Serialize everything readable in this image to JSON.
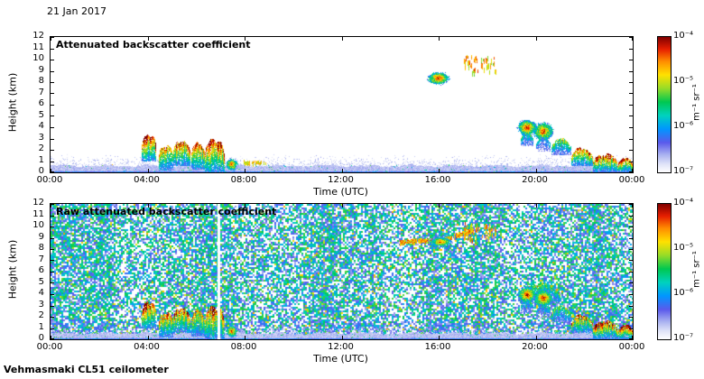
{
  "header": {
    "date": "21 Jan 2017"
  },
  "footer": {
    "instrument": "Vehmasmaki CL51 ceilometer"
  },
  "colormap_stops": [
    [
      0.0,
      255,
      255,
      255
    ],
    [
      0.06,
      224,
      228,
      248
    ],
    [
      0.13,
      170,
      178,
      240
    ],
    [
      0.22,
      90,
      90,
      235
    ],
    [
      0.32,
      0,
      150,
      255
    ],
    [
      0.42,
      0,
      210,
      190
    ],
    [
      0.52,
      0,
      200,
      80
    ],
    [
      0.62,
      150,
      220,
      40
    ],
    [
      0.72,
      255,
      225,
      0
    ],
    [
      0.82,
      255,
      140,
      0
    ],
    [
      0.91,
      230,
      30,
      0
    ],
    [
      1.0,
      128,
      0,
      0
    ]
  ],
  "chart_data": [
    {
      "type": "heatmap",
      "title": "Attenuated backscatter coefficient",
      "xlabel": "Time (UTC)",
      "ylabel": "Height (km)",
      "x_ticks": [
        "00:00",
        "04:00",
        "08:00",
        "12:00",
        "16:00",
        "20:00",
        "00:00"
      ],
      "x_tick_hours": [
        0,
        4,
        8,
        12,
        16,
        20,
        24
      ],
      "xlim_hours": [
        0,
        24
      ],
      "y_ticks": [
        0,
        1,
        2,
        3,
        4,
        5,
        6,
        7,
        8,
        9,
        10,
        11,
        12
      ],
      "ylim_km": [
        0,
        12
      ],
      "colorbar": {
        "ticks": [
          "10⁻⁴",
          "10⁻⁵",
          "10⁻⁶",
          "10⁻⁷"
        ],
        "unit": "m⁻¹ sr⁻¹",
        "scale": "log",
        "range": [
          "1e-7",
          "1e-4"
        ]
      },
      "background": {
        "style": "clean",
        "surface_layer_top_km": 0.55,
        "surface_speckle_km": 1.0
      },
      "features": [
        {
          "kind": "plume",
          "t0": 3.75,
          "t1": 4.35,
          "top": 3.6,
          "base": 1.0,
          "core": 0.97
        },
        {
          "kind": "plume",
          "t0": 4.45,
          "t1": 5.05,
          "top": 2.6,
          "base": 0.2,
          "core": 0.82
        },
        {
          "kind": "plume",
          "t0": 5.05,
          "t1": 5.75,
          "top": 3.0,
          "base": 0.6,
          "core": 0.9
        },
        {
          "kind": "plume",
          "t0": 5.8,
          "t1": 6.35,
          "top": 2.9,
          "base": 0.3,
          "core": 0.85
        },
        {
          "kind": "plume",
          "t0": 6.35,
          "t1": 7.15,
          "top": 3.2,
          "base": 0.0,
          "core": 0.95
        },
        {
          "kind": "cloud",
          "t0": 7.25,
          "t1": 7.65,
          "h0": 0.3,
          "h1": 1.2,
          "core": 0.9
        },
        {
          "kind": "layer",
          "t0": 7.95,
          "t1": 8.85,
          "h": 0.85,
          "thick": 0.3,
          "v": 0.72
        },
        {
          "kind": "cloud",
          "t0": 15.6,
          "t1": 16.35,
          "h0": 7.9,
          "h1": 8.85,
          "core": 0.93
        },
        {
          "kind": "dots",
          "t0": 17.05,
          "t1": 17.6,
          "h0": 8.9,
          "h1": 10.4,
          "v": 0.72
        },
        {
          "kind": "dots",
          "t0": 17.75,
          "t1": 18.35,
          "h0": 9.0,
          "h1": 10.3,
          "v": 0.7
        },
        {
          "kind": "cloud",
          "t0": 19.3,
          "t1": 19.95,
          "h0": 3.4,
          "h1": 4.6,
          "core": 0.95
        },
        {
          "kind": "plume",
          "t0": 19.35,
          "t1": 19.9,
          "top": 3.5,
          "base": 2.4,
          "core": 0.45
        },
        {
          "kind": "cloud",
          "t0": 19.95,
          "t1": 20.65,
          "h0": 3.0,
          "h1": 4.35,
          "core": 0.9
        },
        {
          "kind": "plume",
          "t0": 20.0,
          "t1": 20.6,
          "top": 3.1,
          "base": 1.9,
          "core": 0.38
        },
        {
          "kind": "plume",
          "t0": 20.65,
          "t1": 21.45,
          "top": 3.0,
          "base": 1.6,
          "core": 0.6
        },
        {
          "kind": "plume",
          "t0": 21.45,
          "t1": 22.35,
          "top": 2.2,
          "base": 0.6,
          "core": 0.85
        },
        {
          "kind": "plume",
          "t0": 22.35,
          "t1": 23.35,
          "top": 1.7,
          "base": 0.15,
          "core": 0.96
        },
        {
          "kind": "plume",
          "t0": 23.35,
          "t1": 24.0,
          "top": 1.3,
          "base": 0.1,
          "core": 0.96
        }
      ]
    },
    {
      "type": "heatmap",
      "title": "Raw attenuated backscatter coefficient",
      "xlabel": "Time (UTC)",
      "ylabel": "Height (km)",
      "x_ticks": [
        "00:00",
        "04:00",
        "08:00",
        "12:00",
        "16:00",
        "20:00",
        "00:00"
      ],
      "x_tick_hours": [
        0,
        4,
        8,
        12,
        16,
        20,
        24
      ],
      "xlim_hours": [
        0,
        24
      ],
      "y_ticks": [
        0,
        1,
        2,
        3,
        4,
        5,
        6,
        7,
        8,
        9,
        10,
        11,
        12
      ],
      "ylim_km": [
        0,
        12
      ],
      "colorbar": {
        "ticks": [
          "10⁻⁴",
          "10⁻⁵",
          "10⁻⁶",
          "10⁻⁷"
        ],
        "unit": "m⁻¹ sr⁻¹",
        "scale": "log",
        "range": [
          "1e-7",
          "1e-4"
        ]
      },
      "background": {
        "style": "raw-noise",
        "surface_layer_top_km": 0.5,
        "surface_speckle_km": 0.6,
        "white_gap_hour": 6.88
      },
      "features": [
        {
          "kind": "plume",
          "t0": 3.75,
          "t1": 4.35,
          "top": 3.6,
          "base": 1.0,
          "core": 0.97
        },
        {
          "kind": "plume",
          "t0": 4.45,
          "t1": 5.05,
          "top": 2.6,
          "base": 0.2,
          "core": 0.82
        },
        {
          "kind": "plume",
          "t0": 5.05,
          "t1": 5.75,
          "top": 3.0,
          "base": 0.6,
          "core": 0.9
        },
        {
          "kind": "plume",
          "t0": 5.8,
          "t1": 6.35,
          "top": 2.9,
          "base": 0.3,
          "core": 0.85
        },
        {
          "kind": "plume",
          "t0": 6.35,
          "t1": 7.15,
          "top": 3.2,
          "base": 0.0,
          "core": 0.95
        },
        {
          "kind": "cloud",
          "t0": 7.25,
          "t1": 7.65,
          "h0": 0.3,
          "h1": 1.2,
          "core": 0.9
        },
        {
          "kind": "diag",
          "t0": 14.4,
          "t1": 17.6,
          "hA": 8.35,
          "hB": 9.55,
          "thick": 0.35,
          "v": 0.78
        },
        {
          "kind": "cloud",
          "t0": 15.7,
          "t1": 16.45,
          "h0": 8.3,
          "h1": 9.05,
          "core": 0.88
        },
        {
          "kind": "dots",
          "t0": 17.05,
          "t1": 17.6,
          "h0": 8.9,
          "h1": 10.4,
          "v": 0.72
        },
        {
          "kind": "dots",
          "t0": 17.75,
          "t1": 18.35,
          "h0": 9.0,
          "h1": 10.3,
          "v": 0.7
        },
        {
          "kind": "plume",
          "t0": 19.35,
          "t1": 21.0,
          "top": 5.0,
          "base": 3.2,
          "core": 0.55
        },
        {
          "kind": "cloud",
          "t0": 19.3,
          "t1": 19.95,
          "h0": 3.4,
          "h1": 4.6,
          "core": 0.95
        },
        {
          "kind": "plume",
          "t0": 19.35,
          "t1": 19.9,
          "top": 3.5,
          "base": 2.4,
          "core": 0.45
        },
        {
          "kind": "cloud",
          "t0": 19.95,
          "t1": 20.65,
          "h0": 3.0,
          "h1": 4.35,
          "core": 0.9
        },
        {
          "kind": "plume",
          "t0": 20.0,
          "t1": 20.6,
          "top": 3.1,
          "base": 1.9,
          "core": 0.38
        },
        {
          "kind": "plume",
          "t0": 20.65,
          "t1": 21.45,
          "top": 3.0,
          "base": 1.6,
          "core": 0.6
        },
        {
          "kind": "plume",
          "t0": 21.45,
          "t1": 22.35,
          "top": 2.2,
          "base": 0.6,
          "core": 0.85
        },
        {
          "kind": "plume",
          "t0": 22.35,
          "t1": 23.35,
          "top": 1.7,
          "base": 0.15,
          "core": 0.96
        },
        {
          "kind": "plume",
          "t0": 23.35,
          "t1": 24.0,
          "top": 1.3,
          "base": 0.1,
          "core": 0.96
        }
      ]
    }
  ]
}
